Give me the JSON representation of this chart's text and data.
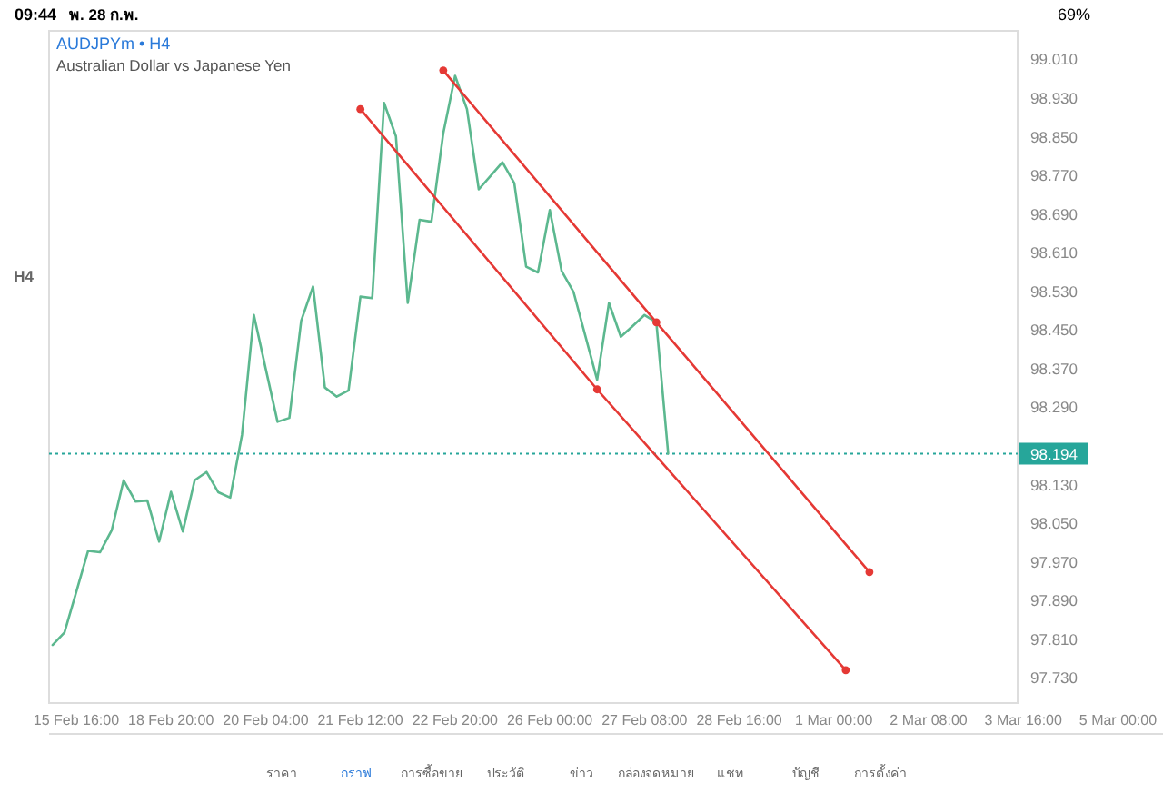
{
  "chart_data": {
    "type": "line",
    "title": "AUDJPYm • H4",
    "subtitle": "Australian Dollar vs Japanese Yen",
    "annotations": [
      "09:44",
      "พ. 28 ก.พ.",
      "69%",
      "H4",
      "ราคา",
      "กราฟ",
      "การซื้อขาย",
      "ประวัติ",
      "ข่าว",
      "กล่องจดหมาย",
      "แชท",
      "บัญชี",
      "การตั้งค่า"
    ],
    "categories": [
      null,
      null,
      "15 Feb 16:00",
      null,
      null,
      null,
      null,
      null,
      null,
      null,
      "18 Feb 20:00",
      null,
      null,
      null,
      null,
      null,
      null,
      null,
      "20 Feb 04:00",
      null,
      null,
      null,
      null,
      null,
      null,
      null,
      "21 Feb 12:00",
      null,
      null,
      null,
      null,
      null,
      null,
      null,
      "22 Feb 20:00",
      null,
      null,
      null,
      null,
      null,
      null,
      null,
      "26 Feb 00:00",
      null,
      null,
      null,
      null,
      null,
      null,
      null,
      "27 Feb 08:00",
      null,
      null,
      null,
      null,
      null,
      null,
      null,
      "28 Feb 16:00",
      null,
      null,
      null,
      null,
      null,
      null,
      null,
      "1 Mar 00:00",
      null,
      null,
      null,
      null,
      null,
      null,
      null,
      "2 Mar 08:00",
      null,
      null,
      null,
      null,
      null,
      null,
      null,
      "3 Mar 16:00",
      null,
      null,
      null,
      null,
      null,
      null,
      null,
      "5 Mar 00:00",
      null,
      null,
      null
    ],
    "ylim": [
      97.678,
      99.069
    ],
    "yticks": [
      {
        "value": 97.73,
        "label": "97.730"
      },
      {
        "value": 97.81,
        "label": "97.810"
      },
      {
        "value": 97.89,
        "label": "97.890"
      },
      {
        "value": 97.97,
        "label": "97.970"
      },
      {
        "value": 98.05,
        "label": "98.050"
      },
      {
        "value": 98.13,
        "label": "98.130"
      },
      {
        "value": 98.29,
        "label": "98.290"
      },
      {
        "value": 98.37,
        "label": "98.370"
      },
      {
        "value": 98.45,
        "label": "98.450"
      },
      {
        "value": 98.53,
        "label": "98.530"
      },
      {
        "value": 98.61,
        "label": "98.610"
      },
      {
        "value": 98.69,
        "label": "98.690"
      },
      {
        "value": 98.77,
        "label": "98.770"
      },
      {
        "value": 98.85,
        "label": "98.850"
      },
      {
        "value": 98.93,
        "label": "98.930"
      },
      {
        "value": 99.01,
        "label": "99.010"
      }
    ],
    "grid": false,
    "line_style": "solid",
    "ref_lines": [
      {
        "axis": "y",
        "value": 98.194,
        "label": "98.194",
        "color": "#26a69a",
        "line_style": "dotted"
      }
    ],
    "series": [
      {
        "color": "#5cb88f",
        "marker": "none",
        "values": [
          97.798,
          97.824,
          97.908,
          97.993,
          97.99,
          98.036,
          98.139,
          98.095,
          98.097,
          98.012,
          98.115,
          98.033,
          98.139,
          98.156,
          98.114,
          98.103,
          98.233,
          98.481,
          98.37,
          98.26,
          98.268,
          98.469,
          98.54,
          98.331,
          98.312,
          98.325,
          98.519,
          98.516,
          98.92,
          98.851,
          98.506,
          98.678,
          98.674,
          98.857,
          98.976,
          98.907,
          98.741,
          98.769,
          98.797,
          98.754,
          98.581,
          98.569,
          98.698,
          98.572,
          98.529,
          98.438,
          98.347,
          98.506,
          98.436,
          98.458,
          98.481,
          98.466,
          98.194,
          null,
          null,
          null,
          null,
          null,
          null,
          null,
          null,
          null,
          null,
          null,
          null,
          null,
          null,
          null,
          null,
          null,
          null,
          null,
          null,
          null,
          null,
          null,
          null,
          null,
          null,
          null,
          null,
          null,
          null,
          null,
          null,
          null,
          null,
          null,
          null,
          null,
          null,
          null,
          null,
          null
        ]
      },
      {
        "color": "#e53935",
        "marker": "circle",
        "values": [
          null,
          null,
          null,
          null,
          null,
          null,
          null,
          null,
          null,
          null,
          null,
          null,
          null,
          null,
          null,
          null,
          null,
          null,
          null,
          null,
          null,
          null,
          null,
          null,
          null,
          null,
          null,
          null,
          null,
          null,
          null,
          null,
          null,
          98.987,
          null,
          null,
          null,
          null,
          null,
          null,
          null,
          null,
          null,
          null,
          null,
          null,
          null,
          null,
          null,
          null,
          null,
          98.466,
          null,
          null,
          null,
          null,
          null,
          null,
          null,
          null,
          null,
          null,
          null,
          null,
          null,
          null,
          null,
          null,
          null,
          97.949,
          null,
          null,
          null,
          null,
          null,
          null,
          null,
          null,
          null,
          null,
          null,
          null,
          null,
          null,
          null,
          null,
          null,
          null,
          null,
          null,
          null,
          null,
          null,
          null
        ]
      },
      {
        "color": "#e53935",
        "marker": "circle",
        "values": [
          null,
          null,
          null,
          null,
          null,
          null,
          null,
          null,
          null,
          null,
          null,
          null,
          null,
          null,
          null,
          null,
          null,
          null,
          null,
          null,
          null,
          null,
          null,
          null,
          null,
          null,
          98.907,
          null,
          null,
          null,
          null,
          null,
          null,
          null,
          null,
          null,
          null,
          null,
          null,
          null,
          null,
          null,
          null,
          null,
          null,
          null,
          98.327,
          null,
          null,
          null,
          null,
          null,
          null,
          null,
          null,
          null,
          null,
          null,
          null,
          null,
          null,
          null,
          null,
          null,
          null,
          null,
          null,
          97.746,
          null,
          null,
          null,
          null,
          null,
          null,
          null,
          null,
          null,
          null,
          null,
          null,
          null,
          null,
          null,
          null,
          null,
          null,
          null,
          null,
          null,
          null,
          null,
          null,
          null,
          null
        ]
      }
    ]
  }
}
